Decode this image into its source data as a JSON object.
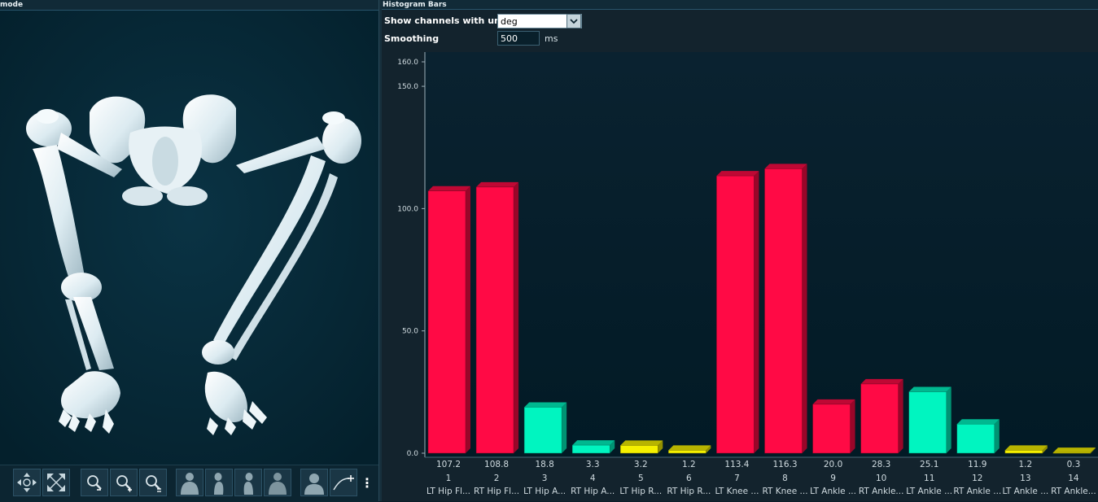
{
  "left_panel": {
    "title": "mode",
    "toolbar": {
      "buttons": [
        {
          "name": "pan-rotate-button",
          "icon": "rotate-arrows-icon"
        },
        {
          "name": "pan-move-button",
          "icon": "move-arrows-icon"
        },
        {
          "name": "zoom-out-button",
          "icon": "zoom-out-icon"
        },
        {
          "name": "zoom-in-button",
          "icon": "zoom-in-icon"
        },
        {
          "name": "zoom-reset-button",
          "icon": "zoom-reset-icon"
        },
        {
          "name": "view-front-button",
          "icon": "body-front-icon"
        },
        {
          "name": "view-side-left-button",
          "icon": "body-side-left-icon"
        },
        {
          "name": "view-side-right-button",
          "icon": "body-side-right-icon"
        },
        {
          "name": "view-back-button",
          "icon": "body-back-icon"
        },
        {
          "name": "view-top-button",
          "icon": "body-top-icon"
        },
        {
          "name": "add-trace-button",
          "icon": "curve-plus-icon"
        }
      ],
      "more_label": "⋮"
    }
  },
  "right_panel": {
    "title": "Histogram Bars",
    "units_label": "Show channels with units",
    "units_value": "deg",
    "smoothing_label": "Smoothing",
    "smoothing_value": "500",
    "smoothing_unit": "ms"
  },
  "colors": {
    "red": "#ff0a45",
    "teal": "#00f5c0",
    "yellow": "#f4f000",
    "axis_text": "#d0dbe0"
  },
  "chart_data": {
    "type": "bar",
    "ylim": [
      0,
      160
    ],
    "ytick_labels": [
      "0.0",
      "50.0",
      "100.0",
      "150.0",
      "160.0"
    ],
    "yticks": [
      0,
      50,
      100,
      150,
      160
    ],
    "categories": [
      "1",
      "2",
      "3",
      "4",
      "5",
      "6",
      "7",
      "8",
      "9",
      "10",
      "11",
      "12",
      "13",
      "14"
    ],
    "channel_labels": [
      "LT Hip Fl...",
      "RT Hip Fl...",
      "LT Hip A...",
      "RT Hip A...",
      "LT Hip R...",
      "RT Hip R...",
      "LT Knee ...",
      "RT Knee ...",
      "LT Ankle ...",
      "RT Ankle...",
      "LT Ankle ...",
      "RT Ankle ...",
      "LT Ankle ...",
      "RT Ankle..."
    ],
    "values": [
      107.2,
      108.8,
      18.8,
      3.3,
      3.2,
      1.2,
      113.4,
      116.3,
      20.0,
      28.3,
      25.1,
      11.9,
      1.2,
      0.3
    ],
    "value_labels": [
      "107.2",
      "108.8",
      "18.8",
      "3.3",
      "3.2",
      "1.2",
      "113.4",
      "116.3",
      "20.0",
      "28.3",
      "25.1",
      "11.9",
      "1.2",
      "0.3"
    ],
    "bar_colors": [
      "red",
      "red",
      "teal",
      "teal",
      "yellow",
      "yellow",
      "red",
      "red",
      "red",
      "red",
      "teal",
      "teal",
      "yellow",
      "yellow"
    ],
    "grid": false
  }
}
